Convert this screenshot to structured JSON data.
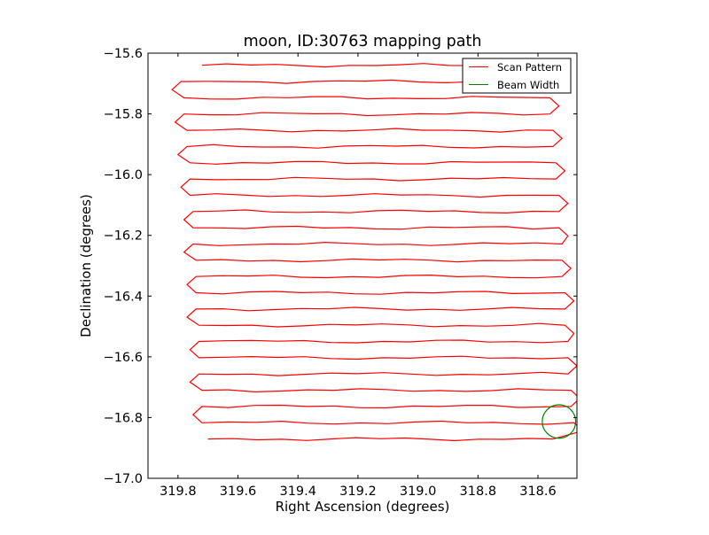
{
  "chart_data": {
    "type": "line",
    "title": "moon, ID:30763 mapping path",
    "xlabel": "Right Ascension (degrees)",
    "ylabel": "Declination (degrees)",
    "xlim": [
      319.9,
      318.47
    ],
    "ylim": [
      -17.0,
      -15.6
    ],
    "x_inverted": true,
    "xticks": [
      319.8,
      319.6,
      319.4,
      319.2,
      319.0,
      318.8,
      318.6
    ],
    "xtick_labels": [
      "319.8",
      "319.6",
      "319.4",
      "319.2",
      "319.0",
      "318.8",
      "318.6"
    ],
    "yticks": [
      -15.6,
      -15.8,
      -16.0,
      -16.2,
      -16.4,
      -16.6,
      -16.8,
      -17.0
    ],
    "ytick_labels": [
      "−15.6",
      "−15.8",
      "−16.0",
      "−16.2",
      "−16.4",
      "−16.6",
      "−16.8",
      "−17.0"
    ],
    "grid": false,
    "legend": {
      "position": "top-right",
      "entries": [
        {
          "label": "Scan Pattern",
          "color": "#ff0000"
        },
        {
          "label": "Beam Width",
          "color": "#008000"
        }
      ]
    },
    "series": [
      {
        "name": "Scan Pattern",
        "color": "#ff0000",
        "rows": {
          "y_start": -15.64,
          "y_step": -0.0535,
          "count": 24,
          "x_left": [
            319.72,
            319.79,
            319.78,
            319.78,
            319.77,
            319.77,
            319.76,
            319.76,
            319.76,
            319.75,
            319.75,
            319.75,
            319.74,
            319.74,
            319.74,
            319.74,
            319.73,
            319.73,
            319.73,
            319.73,
            319.72,
            319.72,
            319.72,
            319.7
          ],
          "x_right": [
            318.57,
            318.56,
            318.56,
            318.56,
            318.55,
            318.55,
            318.54,
            318.54,
            318.53,
            318.53,
            318.53,
            318.52,
            318.52,
            318.52,
            318.51,
            318.51,
            318.51,
            318.5,
            318.5,
            318.5,
            318.49,
            318.49,
            318.48,
            318.55
          ]
        }
      },
      {
        "name": "Beam Width",
        "color": "#008000",
        "circle": {
          "center_x": 318.53,
          "center_y": -16.813,
          "radius_deg": 0.055
        }
      }
    ]
  }
}
